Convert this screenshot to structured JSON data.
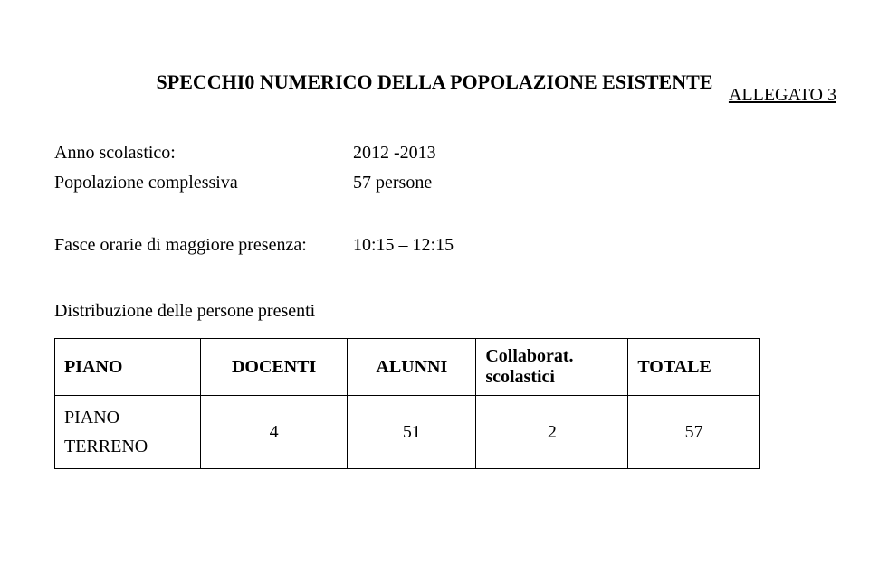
{
  "header": {
    "attachment": "ALLEGATO 3"
  },
  "title": "SPECCHI0 NUMERICO DELLA POPOLAZIONE ESISTENTE",
  "info": {
    "anno_label": "Anno scolastico:",
    "anno_value": "2012 -2013",
    "pop_label": "Popolazione complessiva",
    "pop_value": "57 persone",
    "fasce_label": "Fasce orarie di maggiore presenza:",
    "fasce_value": "10:15 – 12:15"
  },
  "distribution": {
    "heading": "Distribuzione delle persone presenti",
    "columns": {
      "piano": "PIANO",
      "docenti": "DOCENTI",
      "alunni": "ALUNNI",
      "collab_line1": "Collaborat.",
      "collab_line2": "scolastici",
      "totale": "TOTALE"
    },
    "row": {
      "piano_line1": "PIANO",
      "piano_line2": "TERRENO",
      "docenti": "4",
      "alunni": "51",
      "collab": "2",
      "totale": "57"
    }
  }
}
